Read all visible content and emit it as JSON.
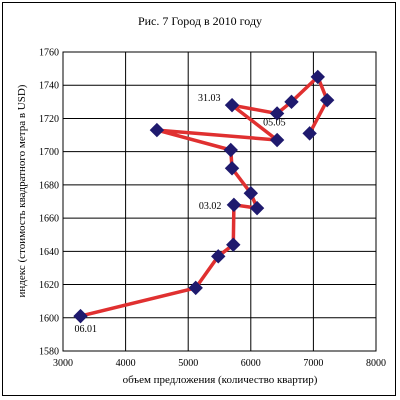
{
  "chart_data": {
    "type": "line",
    "title": "Рис. 7 Город в 2010 году",
    "xlabel": "объем предложения (количество квартир)",
    "ylabel": "индекс (стоимость квадратного метра в USD)",
    "xlim": [
      3000,
      8000
    ],
    "ylim": [
      1580,
      1760
    ],
    "x_ticks": [
      "3000",
      "4000",
      "5000",
      "6000",
      "7000",
      "8000"
    ],
    "y_ticks": [
      "1580",
      "1600",
      "1620",
      "1640",
      "1660",
      "1680",
      "1700",
      "1720",
      "1740",
      "1760"
    ],
    "grid": true,
    "line_color": "#e03030",
    "marker_color": "#1f1a6e",
    "series": [
      {
        "points": [
          [
            3280,
            1601
          ],
          [
            5120,
            1618
          ],
          [
            5480,
            1637
          ],
          [
            5720,
            1644
          ],
          [
            5730,
            1668
          ],
          [
            6100,
            1666
          ],
          [
            6000,
            1675
          ],
          [
            5700,
            1690
          ],
          [
            5680,
            1701
          ],
          [
            4500,
            1713
          ],
          [
            6420,
            1707
          ],
          [
            5700,
            1728
          ],
          [
            6420,
            1723
          ],
          [
            6650,
            1730
          ],
          [
            7070,
            1745
          ],
          [
            7220,
            1731
          ],
          [
            6940,
            1711
          ]
        ]
      }
    ],
    "annotations": [
      {
        "text": "06.01",
        "x": 3280,
        "y": 1601
      },
      {
        "text": "03.02",
        "x": 5730,
        "y": 1668
      },
      {
        "text": "31.03",
        "x": 5700,
        "y": 1728
      },
      {
        "text": "05.05",
        "x": 6420,
        "y": 1723
      }
    ]
  }
}
